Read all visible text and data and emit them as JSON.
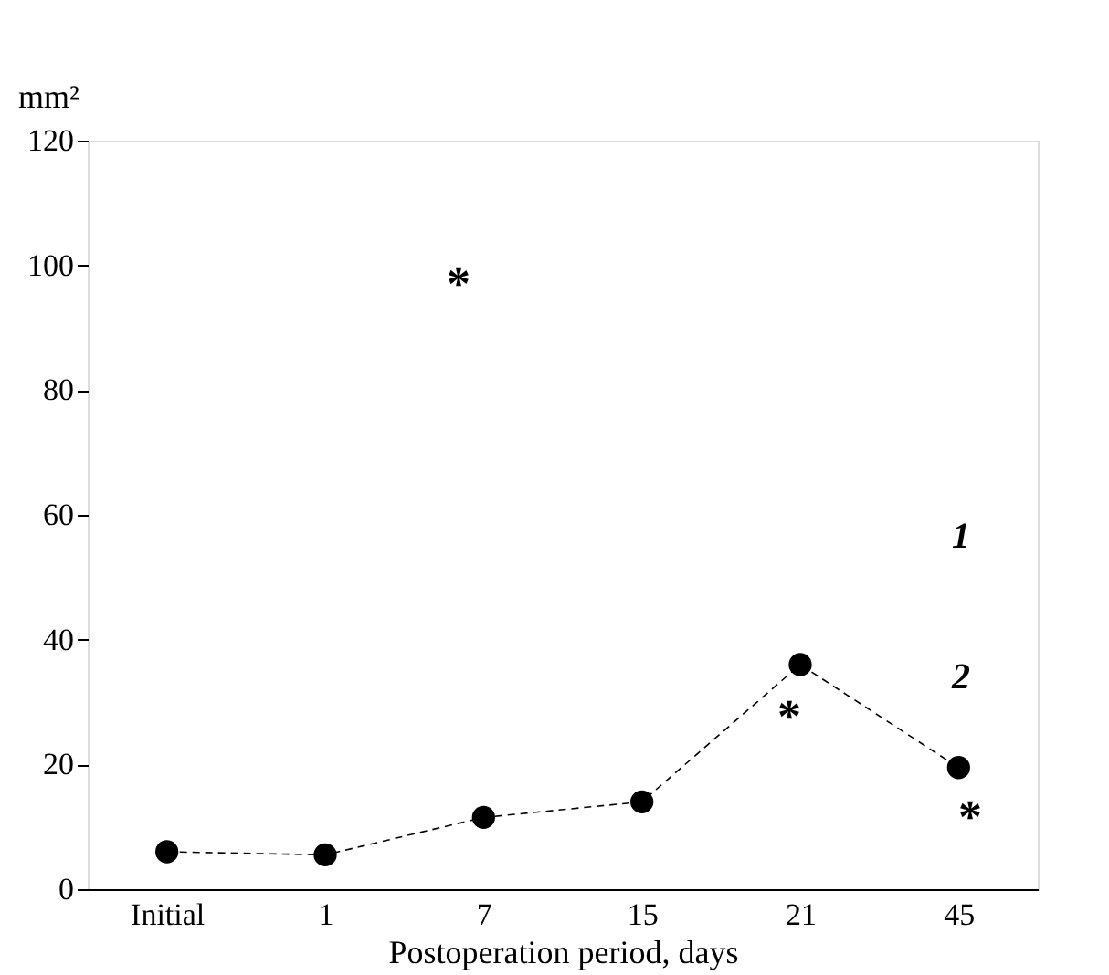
{
  "chart_data": {
    "type": "line",
    "xlabel": "Postoperation period, days",
    "ylabel": "mm²",
    "categories": [
      "Initial",
      "1",
      "7",
      "15",
      "21",
      "45"
    ],
    "series": [
      {
        "color": "#000000",
        "values": [
          6,
          5.5,
          11.5,
          14,
          36,
          19.5
        ]
      }
    ],
    "ylim": [
      0,
      120
    ],
    "yticks": [
      0,
      20,
      40,
      60,
      80,
      100,
      120
    ],
    "marker": "circle",
    "line_style": "dashed",
    "grid": false,
    "annotations": [
      "*",
      "*",
      "*",
      "1",
      "2"
    ]
  }
}
